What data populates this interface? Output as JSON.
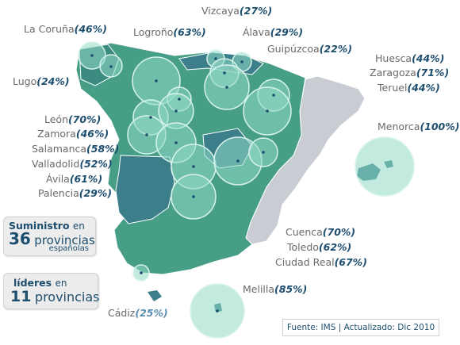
{
  "colors": {
    "region_teal": "#479e87",
    "region_blue": "#3c7f8a",
    "region_gray": "#c9cdd3",
    "circle_fill": "#8fd9c4",
    "label_text": "#6a6a6a",
    "percent_text": "#1d4e6e"
  },
  "labels": [
    {
      "key": "vizcaya",
      "name": "Vizcaya",
      "pct": "(27%)"
    },
    {
      "key": "coruna",
      "name": "La Coruña",
      "pct": "(46%)"
    },
    {
      "key": "logrono",
      "name": "Logroño",
      "pct": "(63%)"
    },
    {
      "key": "alava",
      "name": "Álava",
      "pct": "(29%)"
    },
    {
      "key": "guipuzcoa",
      "name": "Guipúzcoa",
      "pct": "(22%)"
    },
    {
      "key": "huesca",
      "name": "Huesca",
      "pct": "(44%)"
    },
    {
      "key": "zaragoza",
      "name": "Zaragoza",
      "pct": "(71%)"
    },
    {
      "key": "teruel",
      "name": "Teruel",
      "pct": "(44%)"
    },
    {
      "key": "lugo",
      "name": "Lugo",
      "pct": "(24%)"
    },
    {
      "key": "menorca",
      "name": "Menorca",
      "pct": "(100%)"
    },
    {
      "key": "leon",
      "name": "León",
      "pct": "(70%)"
    },
    {
      "key": "zamora",
      "name": "Zamora",
      "pct": "(46%)"
    },
    {
      "key": "salamanca",
      "name": "Salamanca",
      "pct": "(58%)"
    },
    {
      "key": "valladolid",
      "name": "Valladolid",
      "pct": "(52%)"
    },
    {
      "key": "avila",
      "name": "Ávila",
      "pct": "(61%)"
    },
    {
      "key": "palencia",
      "name": "Palencia",
      "pct": "(29%)"
    },
    {
      "key": "cuenca",
      "name": "Cuenca",
      "pct": "(70%)"
    },
    {
      "key": "toledo",
      "name": "Toledo",
      "pct": "(62%)"
    },
    {
      "key": "ciudadreal",
      "name": "Ciudad Real",
      "pct": "(67%)"
    },
    {
      "key": "melilla",
      "name": "Melilla",
      "pct": "(85%)"
    },
    {
      "key": "cadiz",
      "name": "Cádiz",
      "pct": "(25%)"
    }
  ],
  "box1": {
    "line1": "Suministro",
    "line1_small": "en",
    "big": "36",
    "rest": "provincias",
    "line3": "españolas"
  },
  "box2": {
    "line1": "líderes",
    "line1_small": "en",
    "big": "11",
    "rest": "provincias"
  },
  "source": "Fuente: IMS  |  Actualizado: Dic 2010"
}
